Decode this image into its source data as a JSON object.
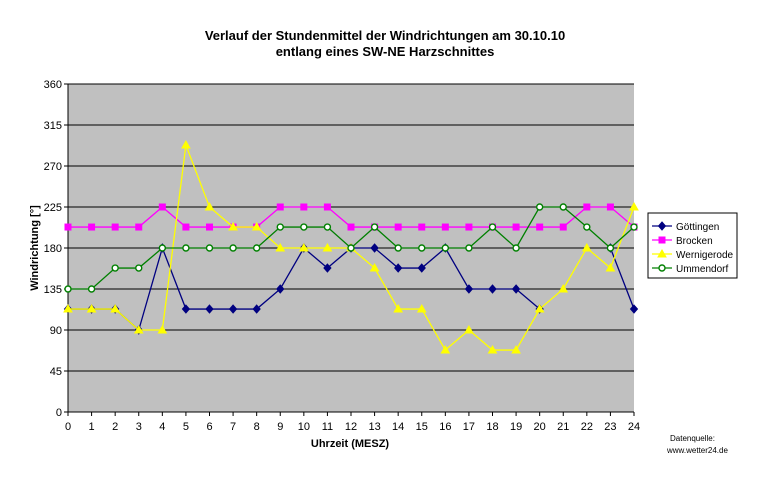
{
  "chart_data": {
    "type": "line",
    "title": "Verlauf der Stundenmittel der Windrichtungen am 30.10.10",
    "subtitle": "entlang eines SW-NE Harzschnittes",
    "xlabel": "Uhrzeit (MESZ)",
    "ylabel": "Windrichtung [°]",
    "x": [
      0,
      1,
      2,
      3,
      4,
      5,
      6,
      7,
      8,
      9,
      10,
      11,
      12,
      13,
      14,
      15,
      16,
      17,
      18,
      19,
      20,
      21,
      22,
      23,
      24
    ],
    "ylim": [
      0,
      360
    ],
    "yticks": [
      0,
      45,
      90,
      135,
      180,
      225,
      270,
      315,
      360
    ],
    "grid": true,
    "legend_position": "right",
    "background": "#c0c0c0",
    "series": [
      {
        "name": "Göttingen",
        "color": "#000080",
        "marker": "diamond",
        "values": [
          113,
          113,
          113,
          90,
          180,
          113,
          113,
          113,
          113,
          135,
          180,
          158,
          180,
          180,
          158,
          158,
          180,
          135,
          135,
          135,
          113,
          null,
          null,
          180,
          113
        ]
      },
      {
        "name": "Brocken",
        "color": "#ff00ff",
        "marker": "square",
        "values": [
          203,
          203,
          203,
          203,
          225,
          203,
          203,
          203,
          203,
          225,
          225,
          225,
          203,
          203,
          203,
          203,
          203,
          203,
          203,
          203,
          203,
          203,
          225,
          225,
          203
        ]
      },
      {
        "name": "Wernigerode",
        "color": "#ffff00",
        "marker": "triangle",
        "values": [
          113,
          113,
          113,
          90,
          90,
          293,
          225,
          203,
          203,
          180,
          180,
          180,
          180,
          158,
          113,
          113,
          68,
          90,
          68,
          68,
          113,
          135,
          180,
          158,
          225
        ]
      },
      {
        "name": "Ummendorf",
        "color": "#008000",
        "marker": "circle",
        "values": [
          135,
          135,
          158,
          158,
          180,
          180,
          180,
          180,
          180,
          203,
          203,
          203,
          180,
          203,
          180,
          180,
          180,
          180,
          203,
          180,
          225,
          225,
          203,
          180,
          203
        ]
      }
    ],
    "source_label": "Datenquelle:",
    "source_value": "www.wetter24.de"
  }
}
